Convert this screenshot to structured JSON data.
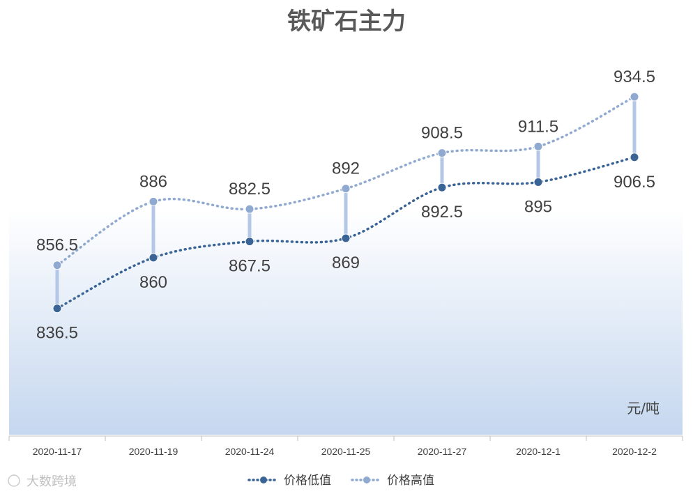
{
  "chart_data": {
    "type": "line",
    "title": "铁矿石主力",
    "unit": "元/吨",
    "categories": [
      "2020-11-17",
      "2020-11-19",
      "2020-11-24",
      "2020-11-25",
      "2020-11-27",
      "2020-12-1",
      "2020-12-2"
    ],
    "series": [
      {
        "name": "价格低值",
        "values": [
          836.5,
          860,
          867.5,
          869,
          892.5,
          895,
          906.5
        ],
        "color": "#3a6496"
      },
      {
        "name": "价格高值",
        "values": [
          856.5,
          886,
          882.5,
          892,
          908.5,
          911.5,
          934.5
        ],
        "color": "#8fa9d1"
      }
    ],
    "ylim": [
      778,
      960
    ],
    "legend": "bottom",
    "grid": false,
    "colors": {
      "connector": "#b4c7e7",
      "background_gradient_bottom": "#c5d7ef"
    }
  },
  "watermark": "大数跨境"
}
